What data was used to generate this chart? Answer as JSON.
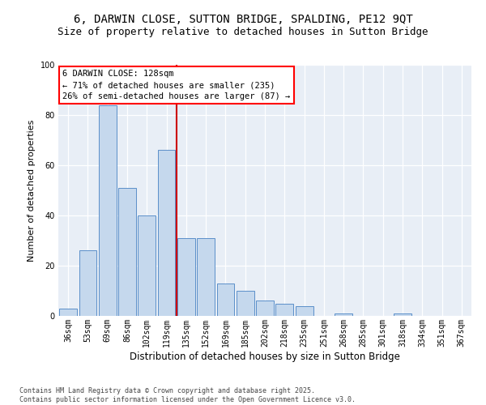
{
  "title": "6, DARWIN CLOSE, SUTTON BRIDGE, SPALDING, PE12 9QT",
  "subtitle": "Size of property relative to detached houses in Sutton Bridge",
  "xlabel": "Distribution of detached houses by size in Sutton Bridge",
  "ylabel": "Number of detached properties",
  "categories": [
    "36sqm",
    "53sqm",
    "69sqm",
    "86sqm",
    "102sqm",
    "119sqm",
    "135sqm",
    "152sqm",
    "169sqm",
    "185sqm",
    "202sqm",
    "218sqm",
    "235sqm",
    "251sqm",
    "268sqm",
    "285sqm",
    "301sqm",
    "318sqm",
    "334sqm",
    "351sqm",
    "367sqm"
  ],
  "values": [
    3,
    26,
    84,
    51,
    40,
    66,
    31,
    31,
    13,
    10,
    6,
    5,
    4,
    0,
    1,
    0,
    0,
    1,
    0,
    0,
    0
  ],
  "bar_color": "#c5d8ed",
  "bar_edge_color": "#5b8fc9",
  "background_color": "#e8eef6",
  "vline_x": 5.5,
  "vline_color": "#cc0000",
  "annotation_text": "6 DARWIN CLOSE: 128sqm\n← 71% of detached houses are smaller (235)\n26% of semi-detached houses are larger (87) →",
  "footer": "Contains HM Land Registry data © Crown copyright and database right 2025.\nContains public sector information licensed under the Open Government Licence v3.0.",
  "ylim": [
    0,
    100
  ],
  "title_fontsize": 10,
  "subtitle_fontsize": 9,
  "tick_fontsize": 7,
  "ylabel_fontsize": 8,
  "xlabel_fontsize": 8.5,
  "annotation_fontsize": 7.5,
  "footer_fontsize": 6
}
